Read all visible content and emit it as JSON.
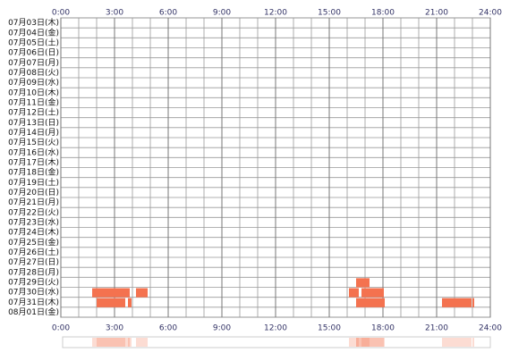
{
  "chart_data": {
    "type": "timeline",
    "color": "#f4724f",
    "xlim": [
      0,
      24
    ],
    "xticks": [
      {
        "value": 0,
        "label": "0:00"
      },
      {
        "value": 3,
        "label": "3:00"
      },
      {
        "value": 6,
        "label": "6:00"
      },
      {
        "value": 9,
        "label": "9:00"
      },
      {
        "value": 12,
        "label": "12:00"
      },
      {
        "value": 15,
        "label": "15:00"
      },
      {
        "value": 18,
        "label": "18:00"
      },
      {
        "value": 21,
        "label": "21:00"
      },
      {
        "value": 24,
        "label": "24:00"
      }
    ],
    "grid": true,
    "rows": [
      {
        "label": "07月03日(木)",
        "spans": []
      },
      {
        "label": "07月04日(金)",
        "spans": []
      },
      {
        "label": "07月05日(土)",
        "spans": []
      },
      {
        "label": "07月06日(日)",
        "spans": []
      },
      {
        "label": "07月07日(月)",
        "spans": []
      },
      {
        "label": "07月08日(火)",
        "spans": []
      },
      {
        "label": "07月09日(水)",
        "spans": []
      },
      {
        "label": "07月10日(木)",
        "spans": []
      },
      {
        "label": "07月11日(金)",
        "spans": []
      },
      {
        "label": "07月12日(土)",
        "spans": []
      },
      {
        "label": "07月13日(日)",
        "spans": []
      },
      {
        "label": "07月14日(月)",
        "spans": []
      },
      {
        "label": "07月15日(火)",
        "spans": []
      },
      {
        "label": "07月16日(水)",
        "spans": []
      },
      {
        "label": "07月17日(木)",
        "spans": []
      },
      {
        "label": "07月18日(金)",
        "spans": []
      },
      {
        "label": "07月19日(土)",
        "spans": []
      },
      {
        "label": "07月20日(日)",
        "spans": []
      },
      {
        "label": "07月21日(月)",
        "spans": []
      },
      {
        "label": "07月22日(火)",
        "spans": []
      },
      {
        "label": "07月23日(水)",
        "spans": []
      },
      {
        "label": "07月24日(木)",
        "spans": []
      },
      {
        "label": "07月25日(金)",
        "spans": []
      },
      {
        "label": "07月26日(土)",
        "spans": []
      },
      {
        "label": "07月27日(日)",
        "spans": []
      },
      {
        "label": "07月28日(月)",
        "spans": []
      },
      {
        "label": "07月29日(火)",
        "spans": [
          [
            16.5,
            17.25
          ]
        ]
      },
      {
        "label": "07月30日(水)",
        "spans": [
          [
            1.75,
            3.85
          ],
          [
            4.2,
            4.85
          ],
          [
            16.1,
            16.65
          ],
          [
            16.8,
            18.05
          ]
        ]
      },
      {
        "label": "07月31日(木)",
        "spans": [
          [
            2.0,
            3.6
          ],
          [
            3.75,
            3.95
          ],
          [
            16.5,
            18.1
          ],
          [
            21.3,
            22.95
          ],
          [
            23.0,
            23.1
          ]
        ]
      },
      {
        "label": "08月01日(金)",
        "spans": []
      }
    ]
  }
}
